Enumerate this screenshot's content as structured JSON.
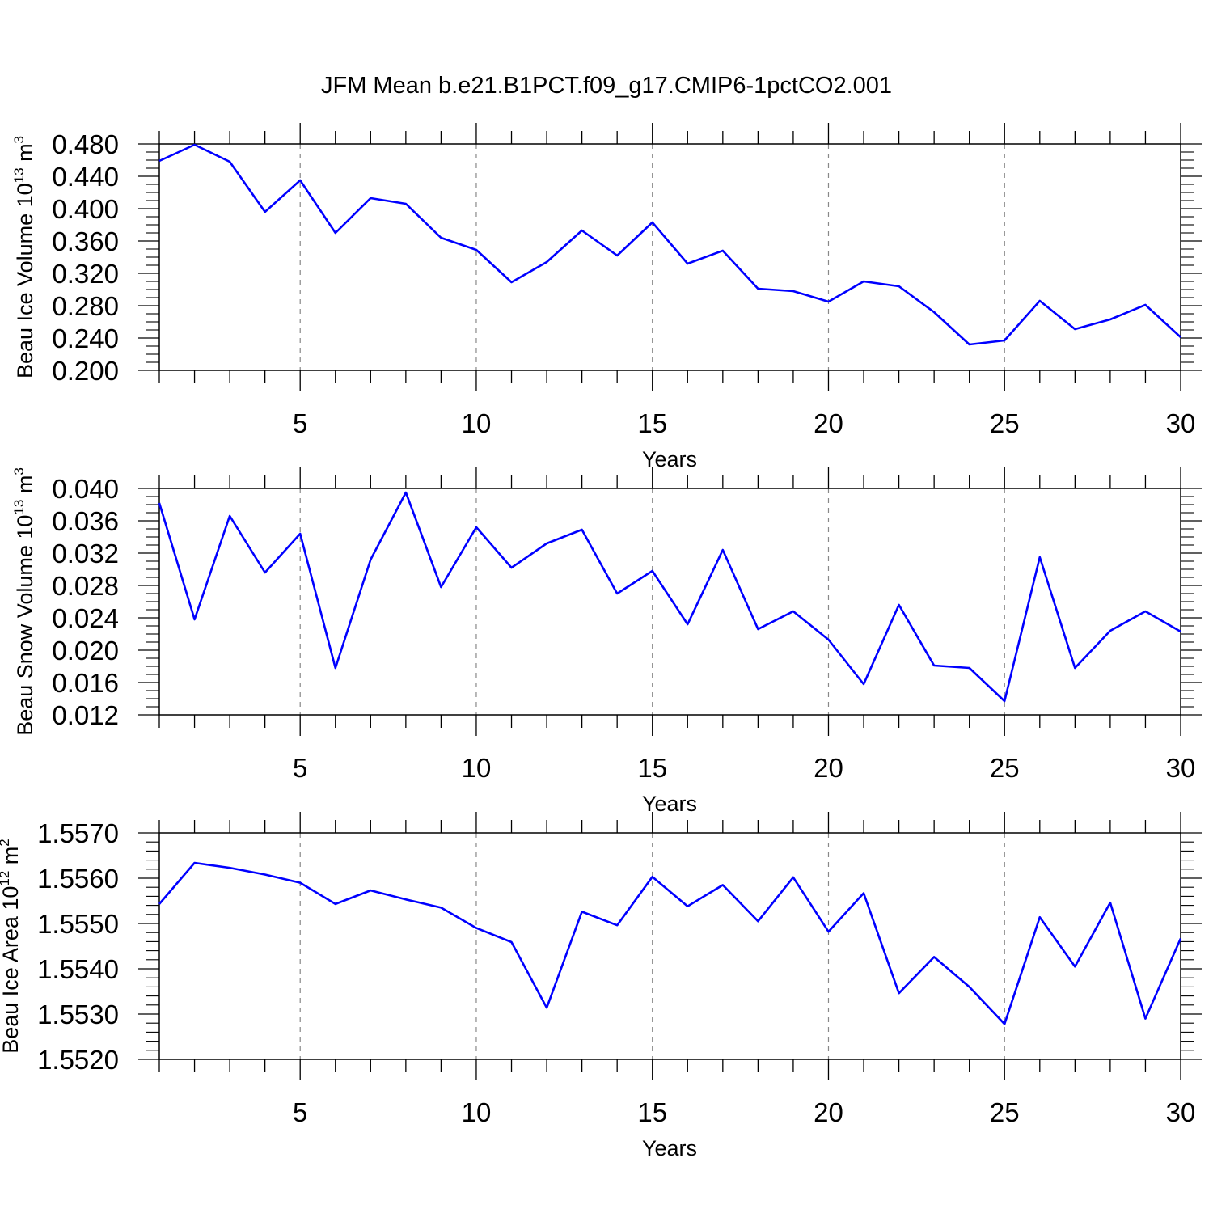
{
  "title": "JFM Mean b.e21.B1PCT.f09_g17.CMIP6-1pctCO2.001",
  "chart_data": [
    {
      "type": "line",
      "xlabel": "Years",
      "ylabel": {
        "text": "Beau Ice Volume 10",
        "sup": "13",
        "unit": " m",
        "unit_sup": "3"
      },
      "xlim": [
        1,
        30
      ],
      "ylim": [
        0.2,
        0.48
      ],
      "y_major_ticks": [
        "0.200",
        "0.240",
        "0.280",
        "0.320",
        "0.360",
        "0.400",
        "0.440",
        "0.480"
      ],
      "x_major_ticks": [
        "5",
        "10",
        "15",
        "20",
        "25",
        "30"
      ],
      "grid": "vertical dashed at major x ticks",
      "series": [
        {
          "name": "Beau Ice Volume",
          "color": "#0000ff",
          "x": [
            1,
            2,
            3,
            4,
            5,
            6,
            7,
            8,
            9,
            10,
            11,
            12,
            13,
            14,
            15,
            16,
            17,
            18,
            19,
            20,
            21,
            22,
            23,
            24,
            25,
            26,
            27,
            28,
            29,
            30
          ],
          "values": [
            0.459,
            0.479,
            0.458,
            0.396,
            0.435,
            0.37,
            0.413,
            0.406,
            0.364,
            0.349,
            0.309,
            0.334,
            0.373,
            0.342,
            0.383,
            0.332,
            0.348,
            0.301,
            0.298,
            0.285,
            0.31,
            0.304,
            0.272,
            0.232,
            0.237,
            0.286,
            0.251,
            0.263,
            0.281,
            0.241
          ]
        }
      ]
    },
    {
      "type": "line",
      "xlabel": "Years",
      "ylabel": {
        "text": "Beau Snow Volume 10",
        "sup": "13",
        "unit": " m",
        "unit_sup": "3"
      },
      "xlim": [
        1,
        30
      ],
      "ylim": [
        0.012,
        0.04
      ],
      "y_major_ticks": [
        "0.012",
        "0.016",
        "0.020",
        "0.024",
        "0.028",
        "0.032",
        "0.036",
        "0.040"
      ],
      "x_major_ticks": [
        "5",
        "10",
        "15",
        "20",
        "25",
        "30"
      ],
      "grid": "vertical dashed at major x ticks",
      "series": [
        {
          "name": "Beau Snow Volume",
          "color": "#0000ff",
          "x": [
            1,
            2,
            3,
            4,
            5,
            6,
            7,
            8,
            9,
            10,
            11,
            12,
            13,
            14,
            15,
            16,
            17,
            18,
            19,
            20,
            21,
            22,
            23,
            24,
            25,
            26,
            27,
            28,
            29,
            30
          ],
          "values": [
            0.0382,
            0.0238,
            0.0366,
            0.0296,
            0.0344,
            0.0178,
            0.0312,
            0.0395,
            0.0278,
            0.0352,
            0.0302,
            0.0332,
            0.0349,
            0.027,
            0.0298,
            0.0232,
            0.0324,
            0.0226,
            0.0248,
            0.0213,
            0.0158,
            0.0256,
            0.0181,
            0.0178,
            0.0137,
            0.0315,
            0.0178,
            0.0224,
            0.0248,
            0.0223
          ]
        }
      ]
    },
    {
      "type": "line",
      "xlabel": "Years",
      "ylabel": {
        "text": "Beau Ice Area 10",
        "sup": "12",
        "unit": " m",
        "unit_sup": "2"
      },
      "xlim": [
        1,
        30
      ],
      "ylim": [
        1.552,
        1.557
      ],
      "y_major_ticks": [
        "1.5520",
        "1.5530",
        "1.5540",
        "1.5550",
        "1.5560",
        "1.5570"
      ],
      "x_major_ticks": [
        "5",
        "10",
        "15",
        "20",
        "25",
        "30"
      ],
      "grid": "vertical dashed at major x ticks",
      "series": [
        {
          "name": "Beau Ice Area",
          "color": "#0000ff",
          "x": [
            1,
            2,
            3,
            4,
            5,
            6,
            7,
            8,
            9,
            10,
            11,
            12,
            13,
            14,
            15,
            16,
            17,
            18,
            19,
            20,
            21,
            22,
            23,
            24,
            25,
            26,
            27,
            28,
            29,
            30
          ],
          "values": [
            1.55543,
            1.55634,
            1.55623,
            1.55608,
            1.5559,
            1.55543,
            1.55573,
            1.55553,
            1.55535,
            1.5549,
            1.55459,
            1.55314,
            1.55526,
            1.55496,
            1.55603,
            1.55538,
            1.55585,
            1.55505,
            1.55602,
            1.55482,
            1.55567,
            1.55346,
            1.55426,
            1.5536,
            1.55278,
            1.55514,
            1.55405,
            1.55546,
            1.5529,
            1.55467
          ]
        }
      ]
    }
  ]
}
